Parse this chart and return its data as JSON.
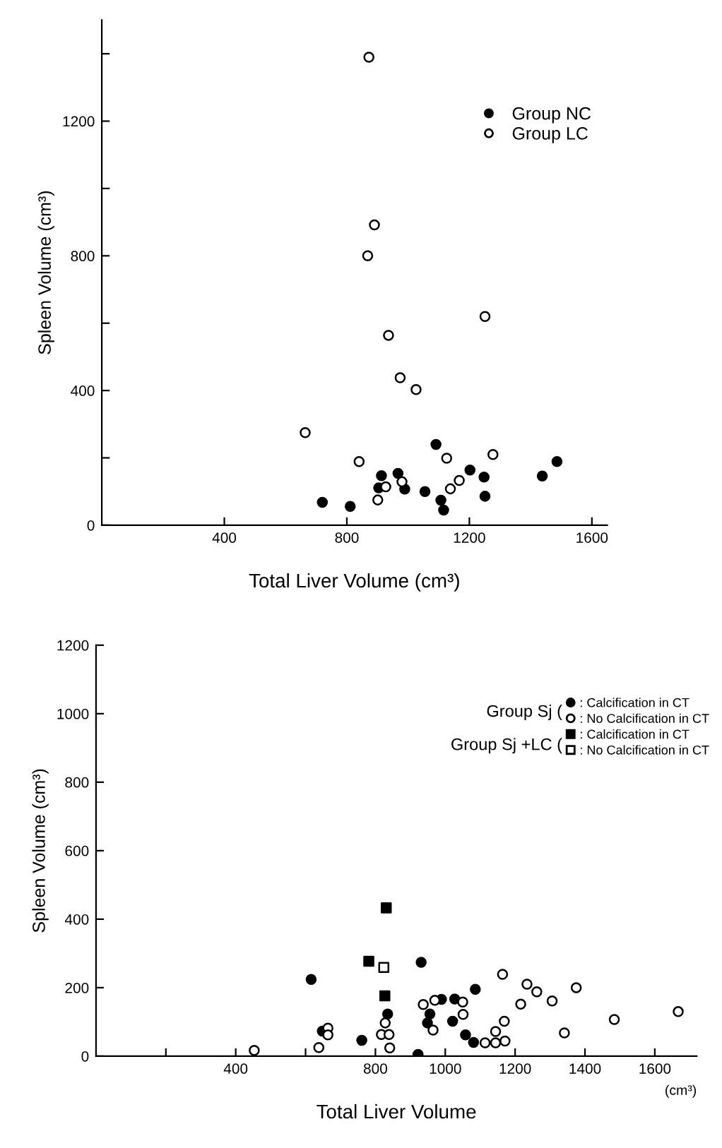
{
  "chart_data": [
    {
      "type": "scatter",
      "xlabel": "Total Liver Volume (cm³)",
      "ylabel": "Spleen Volume (cm³)",
      "xlim": [
        0,
        1650
      ],
      "ylim": [
        0,
        1500
      ],
      "xticks": [
        400,
        800,
        1200,
        1600
      ],
      "yticks": [
        0,
        {
          "value": 200,
          "label": null
        },
        400,
        {
          "value": 600,
          "label": null
        },
        800,
        {
          "value": 1000,
          "label": null
        },
        1200,
        {
          "value": 1400,
          "label": null
        }
      ],
      "grid": false,
      "legend": "top right",
      "series": [
        {
          "name": "Group NC",
          "color": "#000000",
          "marker": "circle",
          "x": [
            720,
            811,
            904,
            913,
            967,
            989,
            1055,
            1091,
            1107,
            1116,
            1202,
            1248,
            1251,
            1438,
            1486
          ],
          "values": [
            68,
            56,
            111,
            147,
            154,
            107,
            100,
            240,
            74,
            45,
            164,
            143,
            86,
            146,
            189
          ]
        },
        {
          "name": "Group LC",
          "color": "#ffffff",
          "marker": "circle",
          "x": [
            872,
            890,
            868,
            1251,
            936,
            974,
            1026,
            664,
            840,
            1126,
            1277,
            927,
            980,
            901,
            1138,
            1167
          ],
          "values": [
            1390,
            892,
            800,
            620,
            564,
            438,
            403,
            275,
            189,
            199,
            210,
            114,
            129,
            75,
            108,
            133
          ]
        }
      ]
    },
    {
      "type": "scatter",
      "xlabel": "Total Liver Volume",
      "ylabel": "Spleen Volume (cm³)",
      "xlim": [
        0,
        1720
      ],
      "ylim": [
        0,
        1200
      ],
      "xticks": [
        {
          "value": 200,
          "label": null
        },
        400,
        {
          "value": 600,
          "label": null
        },
        800,
        1000,
        1200,
        1400,
        1600
      ],
      "yticks": [
        0,
        200,
        400,
        600,
        800,
        1000,
        1200
      ],
      "grid": false,
      "legend": "top right",
      "annotations": [
        "Group Sj (",
        "Group Sj +LC (",
        "(cm³)"
      ],
      "series": [
        {
          "name": ": Calcification in CT",
          "color": "#000000",
          "marker": "circle",
          "x": [
            616,
            648,
            761,
            835,
            931,
            922,
            956,
            949,
            989,
            1027,
            1021,
            1086,
            1058,
            1081
          ],
          "values": [
            224,
            73,
            46,
            123,
            274,
            5,
            123,
            97,
            166,
            167,
            102,
            195,
            62,
            40
          ]
        },
        {
          "name": ": No Calcification in CT",
          "color": "#ffffff",
          "marker": "circle",
          "x": [
            453,
            638,
            664,
            664,
            828,
            817,
            839,
            841,
            937,
            965,
            970,
            1050,
            1051,
            1114,
            1144,
            1144,
            1171,
            1169,
            1164,
            1216,
            1234,
            1262,
            1306,
            1341,
            1375,
            1484,
            1667
          ],
          "values": [
            17,
            25,
            82,
            62,
            97,
            63,
            63,
            24,
            151,
            76,
            163,
            158,
            122,
            39,
            72,
            39,
            44,
            102,
            239,
            152,
            210,
            188,
            161,
            68,
            200,
            107,
            130
          ]
        },
        {
          "name": ": Calcification in CT",
          "color": "#000000",
          "marker": "square",
          "x": [
            831,
            781,
            827
          ],
          "values": [
            433,
            277,
            176
          ]
        },
        {
          "name": ": No Calcification in CT",
          "color": "#ffffff",
          "marker": "square",
          "x": [
            824
          ],
          "values": [
            259
          ]
        }
      ]
    }
  ]
}
